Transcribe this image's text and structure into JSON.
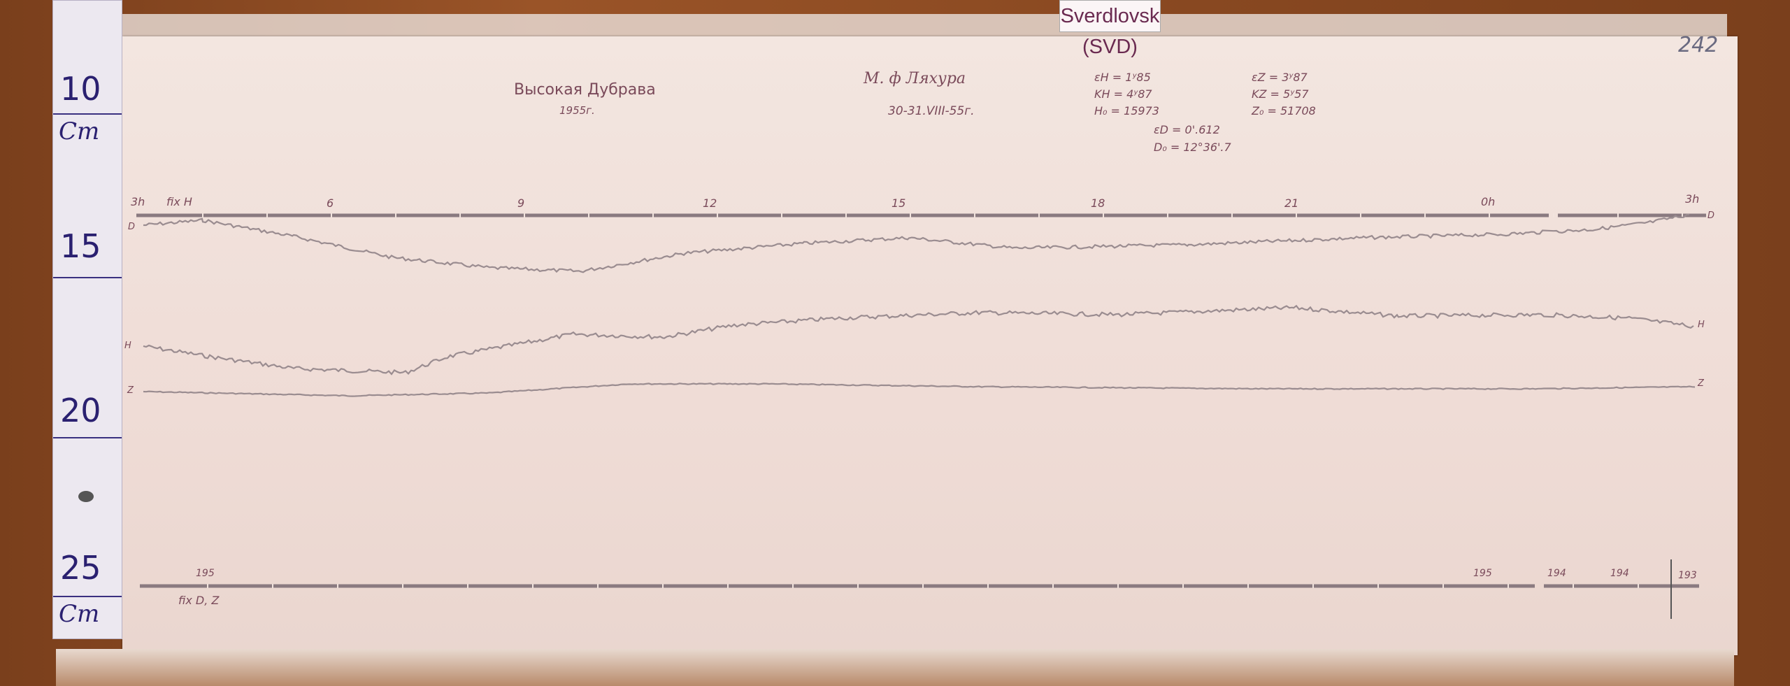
{
  "station_label": "Sverdlovsk (SVD)",
  "page_number": "242",
  "ruler": {
    "marks": [
      "10",
      "15",
      "20",
      "25"
    ],
    "unit": "Cm"
  },
  "header": {
    "station": "Высокая Дубрава",
    "year": "1955г.",
    "observer": "М. ф Ляхура",
    "date": "30-31.VIII-55г.",
    "constants": [
      "εH = 1ʸ85",
      "KH = 4ʸ87",
      "H₀ = 15973",
      "εZ = 3ʸ87",
      "KZ = 5ʸ57",
      "Z₀ = 51708",
      "εD = 0'.612",
      "D₀ = 12°36'.7"
    ]
  },
  "time_axis": {
    "labels": [
      "3h",
      "fix H",
      "6",
      "9",
      "12",
      "15",
      "18",
      "21",
      "0h",
      "3h"
    ]
  },
  "trace_labels": {
    "D": "D",
    "H": "H",
    "Z": "Z",
    "D_right": "D",
    "H_right": "H",
    "Z_right": "Z"
  },
  "bottom_axis": {
    "labels": [
      "195",
      "195",
      "194",
      "194",
      "193"
    ],
    "fix": "fix D, Z"
  },
  "colors": {
    "trace": "#9a8c90",
    "baseline": "#8a7a80",
    "ink": "#7a4a5a",
    "ruler_ink": "#2a2070"
  }
}
